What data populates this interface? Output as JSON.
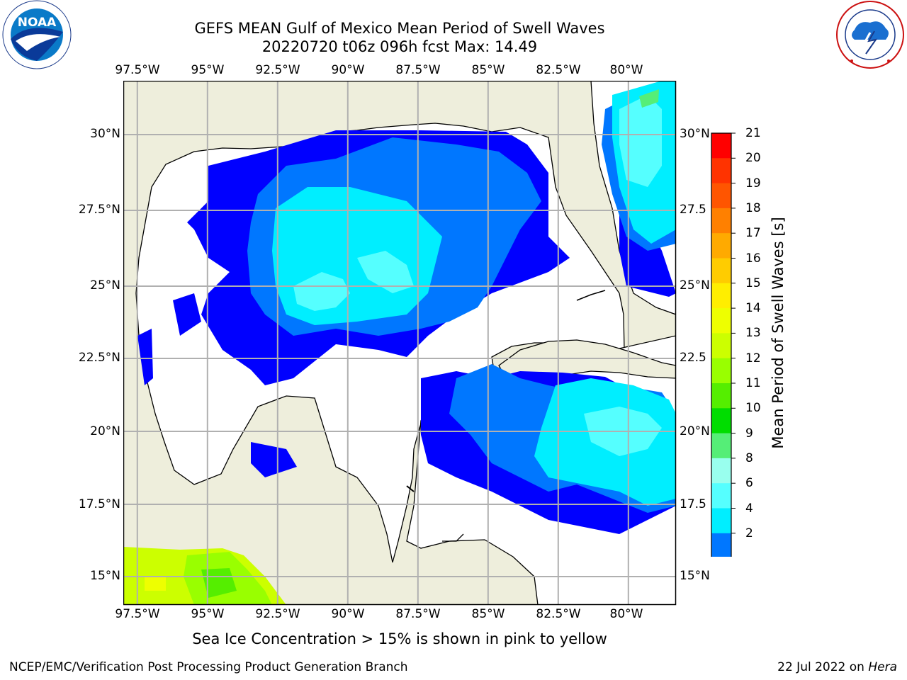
{
  "title": {
    "line1": "GEFS MEAN Gulf of Mexico Mean Period of Swell Waves",
    "line2": "20220720 t06z 096h fcst   Max: 14.49"
  },
  "logos": {
    "left": {
      "name": "noaa-logo",
      "text": "NOAA",
      "ring_text": "NATIONAL OCEANIC AND ATMOSPHERIC ADMINISTRATION · U.S. DEPARTMENT OF COMMERCE"
    },
    "right": {
      "name": "nws-logo",
      "ring_text": "NATIONAL WEATHER SERVICE"
    }
  },
  "map": {
    "lon_labels": [
      "97.5°W",
      "95°W",
      "92.5°W",
      "90°W",
      "87.5°W",
      "85°W",
      "82.5°W",
      "80°W"
    ],
    "lat_labels_left": [
      "30°N",
      "27.5°N",
      "25°N",
      "22.5°N",
      "20°N",
      "17.5°N",
      "15°N"
    ],
    "lat_labels_right": [
      "30°N",
      "27.5",
      "25°N",
      "22.5",
      "20°N",
      "17.5",
      "15°N"
    ],
    "lon_range": [
      -98,
      -78.3
    ],
    "lat_range": [
      14,
      31.5
    ],
    "land_color": "#eeeedc",
    "grid_color": "#b0b0b0"
  },
  "colorbar": {
    "label": "Mean Period of Swell Waves [s]",
    "ticks": [
      "21",
      "20",
      "19",
      "18",
      "17",
      "16",
      "15",
      "14",
      "13",
      "12",
      "11",
      "10",
      "9",
      "8",
      "6",
      "4",
      "2"
    ],
    "colors_top_to_bottom": [
      "#ff0000",
      "#ff3300",
      "#ff5500",
      "#ff8000",
      "#ffaa00",
      "#ffcc00",
      "#ffee00",
      "#eeff00",
      "#ccff00",
      "#99ff00",
      "#55ee00",
      "#00dd00",
      "#55ee77",
      "#99ffee",
      "#55ffff",
      "#00eeff",
      "#0077ff"
    ],
    "extend_color": "#0000ff"
  },
  "note": "Sea Ice Concentration > 15% is shown in pink to yellow",
  "footer": {
    "left": "NCEP/EMC/Verification Post Processing Product Generation Branch",
    "right_date": "22 Jul 2022 on",
    "right_host": "Hera"
  }
}
